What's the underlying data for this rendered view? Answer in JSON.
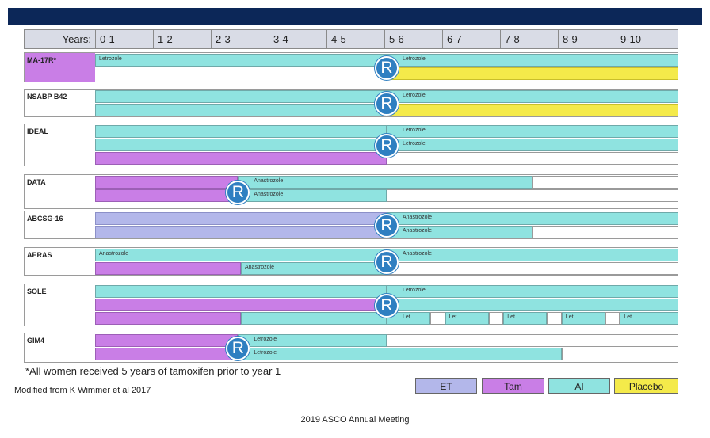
{
  "header": {
    "years_label": "Years:",
    "columns": [
      "0-1",
      "1-2",
      "2-3",
      "3-4",
      "4-5",
      "5-6",
      "6-7",
      "7-8",
      "8-9",
      "9-10"
    ]
  },
  "randomization_symbol": "R",
  "colors": {
    "ET": "#b3b7ea",
    "Tam": "#c97ee6",
    "AI": "#8fe3e0",
    "Placebo": "#f4ea4a",
    "header_bar": "#0c2758",
    "r_circle": "#2f7fc1"
  },
  "trials": [
    {
      "name": "MA-17R*",
      "r_year": 5,
      "arms": [
        {
          "segments": [
            {
              "type": "AI",
              "start": 0,
              "end": 5,
              "label": "Letrozole"
            },
            {
              "type": "AI",
              "start": 5,
              "end": 10,
              "label": "Letrozole"
            }
          ]
        },
        {
          "segments": [
            {
              "type": "Placebo",
              "start": 5,
              "end": 10,
              "label": ""
            }
          ]
        }
      ]
    },
    {
      "name": "NSABP B42",
      "r_year": 5,
      "arms": [
        {
          "segments": [
            {
              "type": "AI",
              "start": 0,
              "end": 5,
              "label": ""
            },
            {
              "type": "AI",
              "start": 5,
              "end": 10,
              "label": "Letrozole"
            }
          ]
        },
        {
          "segments": [
            {
              "type": "AI",
              "start": 0,
              "end": 5,
              "label": ""
            },
            {
              "type": "Placebo",
              "start": 5,
              "end": 10,
              "label": ""
            }
          ]
        }
      ]
    },
    {
      "name": "IDEAL",
      "r_year": 5,
      "arms": [
        {
          "segments": [
            {
              "type": "AI",
              "start": 0,
              "end": 5,
              "label": ""
            },
            {
              "type": "AI",
              "start": 5,
              "end": 10,
              "label": "Letrozole"
            }
          ]
        },
        {
          "segments": [
            {
              "type": "AI",
              "start": 0,
              "end": 5,
              "label": ""
            },
            {
              "type": "AI",
              "start": 5,
              "end": 10,
              "label": "Letrozole"
            }
          ]
        },
        {
          "segments": [
            {
              "type": "Tam",
              "start": 0,
              "end": 5,
              "label": ""
            },
            {
              "type": "White",
              "start": 5,
              "end": 10,
              "label": ""
            }
          ]
        }
      ]
    },
    {
      "name": "DATA",
      "r_year": 2.45,
      "arms": [
        {
          "segments": [
            {
              "type": "Tam",
              "start": 0,
              "end": 2.45,
              "label": ""
            },
            {
              "type": "AI",
              "start": 2.45,
              "end": 7.5,
              "label": "Anastrozole"
            },
            {
              "type": "White",
              "start": 7.5,
              "end": 10,
              "label": ""
            }
          ]
        },
        {
          "segments": [
            {
              "type": "Tam",
              "start": 0,
              "end": 2.45,
              "label": ""
            },
            {
              "type": "AI",
              "start": 2.45,
              "end": 5,
              "label": "Anastrozole"
            },
            {
              "type": "White",
              "start": 5,
              "end": 10,
              "label": ""
            }
          ]
        }
      ]
    },
    {
      "name": "ABCSG-16",
      "r_year": 5,
      "arms": [
        {
          "segments": [
            {
              "type": "ET",
              "start": 0,
              "end": 5,
              "label": ""
            },
            {
              "type": "AI",
              "start": 5,
              "end": 10,
              "label": "Anastrozole"
            }
          ]
        },
        {
          "segments": [
            {
              "type": "ET",
              "start": 0,
              "end": 5,
              "label": ""
            },
            {
              "type": "AI",
              "start": 5,
              "end": 7.5,
              "label": "Anastrozole"
            },
            {
              "type": "White",
              "start": 7.5,
              "end": 10,
              "label": ""
            }
          ]
        }
      ]
    },
    {
      "name": "AERAS",
      "r_year": 5,
      "arms": [
        {
          "segments": [
            {
              "type": "AI",
              "start": 0,
              "end": 5,
              "label": "Anastrozole"
            },
            {
              "type": "AI",
              "start": 5,
              "end": 10,
              "label": "Anastrozole"
            }
          ]
        },
        {
          "segments": [
            {
              "type": "Tam",
              "start": 0,
              "end": 2.5,
              "label": ""
            },
            {
              "type": "AI",
              "start": 2.5,
              "end": 5,
              "label": "Anastrozole"
            },
            {
              "type": "White",
              "start": 5,
              "end": 10,
              "label": ""
            }
          ]
        }
      ]
    },
    {
      "name": "SOLE",
      "r_year": 5,
      "arms": [
        {
          "segments": [
            {
              "type": "AI",
              "start": 0,
              "end": 5,
              "label": ""
            },
            {
              "type": "AI",
              "start": 5,
              "end": 10,
              "label": "Letrozole"
            }
          ]
        },
        {
          "segments": [
            {
              "type": "Tam",
              "start": 0,
              "end": 5,
              "label": ""
            },
            {
              "type": "AI",
              "start": 5,
              "end": 10,
              "label": ""
            }
          ]
        },
        {
          "segments": [
            {
              "type": "Tam",
              "start": 0,
              "end": 2.5,
              "label": ""
            },
            {
              "type": "AI",
              "start": 2.5,
              "end": 5,
              "label": ""
            },
            {
              "type": "AI",
              "start": 5,
              "end": 5.75,
              "label": "Let"
            },
            {
              "type": "White",
              "start": 5.75,
              "end": 6,
              "label": ""
            },
            {
              "type": "AI",
              "start": 6,
              "end": 6.75,
              "label": "Let"
            },
            {
              "type": "White",
              "start": 6.75,
              "end": 7,
              "label": ""
            },
            {
              "type": "AI",
              "start": 7,
              "end": 7.75,
              "label": "Let"
            },
            {
              "type": "White",
              "start": 7.75,
              "end": 8,
              "label": ""
            },
            {
              "type": "AI",
              "start": 8,
              "end": 8.75,
              "label": "Let"
            },
            {
              "type": "White",
              "start": 8.75,
              "end": 9,
              "label": ""
            },
            {
              "type": "AI",
              "start": 9,
              "end": 10,
              "label": "Let"
            }
          ]
        }
      ]
    },
    {
      "name": "GIM4",
      "r_year": 2.45,
      "arms": [
        {
          "segments": [
            {
              "type": "Tam",
              "start": 0,
              "end": 2.45,
              "label": ""
            },
            {
              "type": "AI",
              "start": 2.45,
              "end": 5,
              "label": "Letrozole"
            },
            {
              "type": "White",
              "start": 5,
              "end": 10,
              "label": ""
            }
          ]
        },
        {
          "segments": [
            {
              "type": "Tam",
              "start": 0,
              "end": 2.45,
              "label": ""
            },
            {
              "type": "AI",
              "start": 2.45,
              "end": 8,
              "label": "Letrozole"
            },
            {
              "type": "White",
              "start": 8,
              "end": 10,
              "label": ""
            }
          ]
        }
      ]
    }
  ],
  "footnote": "*All women received 5 years of tamoxifen prior to year 1",
  "source": "Modified from K Wimmer et al 2017",
  "meeting": "2019 ASCO Annual Meeting",
  "legend": [
    {
      "key": "ET",
      "label": "ET"
    },
    {
      "key": "Tam",
      "label": "Tam"
    },
    {
      "key": "AI",
      "label": "AI"
    },
    {
      "key": "Placebo",
      "label": "Placebo"
    }
  ]
}
